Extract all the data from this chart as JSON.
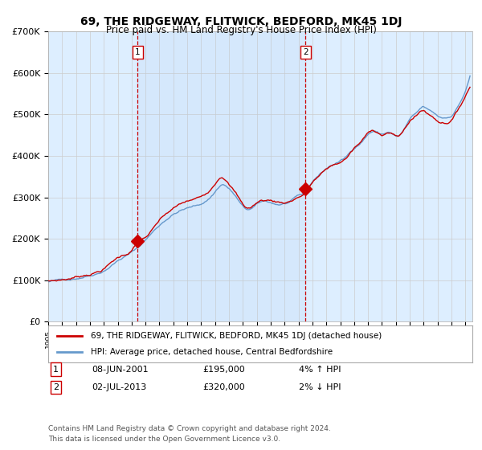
{
  "title": "69, THE RIDGEWAY, FLITWICK, BEDFORD, MK45 1DJ",
  "subtitle": "Price paid vs. HM Land Registry's House Price Index (HPI)",
  "legend_line1": "69, THE RIDGEWAY, FLITWICK, BEDFORD, MK45 1DJ (detached house)",
  "legend_line2": "HPI: Average price, detached house, Central Bedfordshire",
  "transaction1_label": "1",
  "transaction1_date": "08-JUN-2001",
  "transaction1_price": "£195,000",
  "transaction1_hpi": "4% ↑ HPI",
  "transaction1_year": 2001.44,
  "transaction1_value": 195000,
  "transaction2_label": "2",
  "transaction2_date": "02-JUL-2013",
  "transaction2_price": "£320,000",
  "transaction2_hpi": "2% ↓ HPI",
  "transaction2_year": 2013.5,
  "transaction2_value": 320000,
  "footer": "Contains HM Land Registry data © Crown copyright and database right 2024.\nThis data is licensed under the Open Government Licence v3.0.",
  "background_color": "#ddeeff",
  "plot_bg_color": "#ddeeff",
  "line_color_red": "#cc0000",
  "line_color_blue": "#6699cc",
  "ylim": [
    0,
    700000
  ],
  "yticks": [
    0,
    100000,
    200000,
    300000,
    400000,
    500000,
    600000,
    700000
  ],
  "ytick_labels": [
    "£0",
    "£100K",
    "£200K",
    "£300K",
    "£400K",
    "£500K",
    "£600K",
    "£700K"
  ],
  "xlim_start": 1995.0,
  "xlim_end": 2025.5
}
